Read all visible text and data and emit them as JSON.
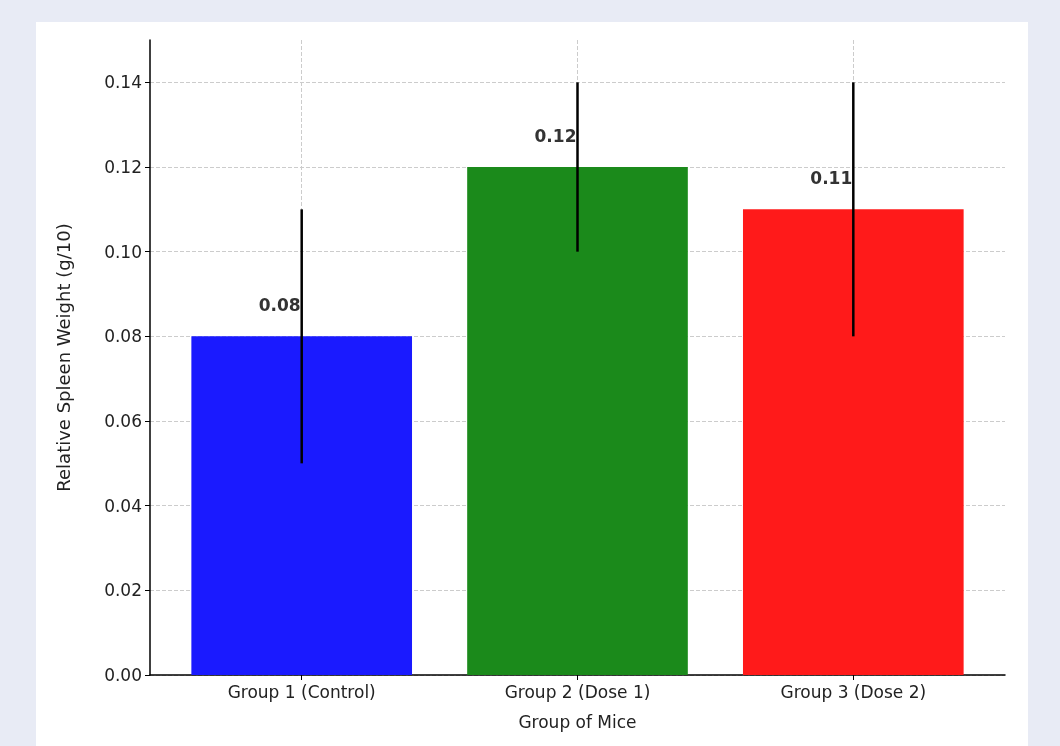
{
  "chart_data": {
    "type": "bar",
    "xlabel": "Group of Mice",
    "ylabel": "Relative Spleen Weight (g/10)",
    "categories": [
      "Group 1 (Control)",
      "Group 2 (Dose 1)",
      "Group 3 (Dose 2)"
    ],
    "values": [
      0.08,
      0.12,
      0.11
    ],
    "colors": [
      "#1a1aff",
      "#1b8a1b",
      "#ff1a1a"
    ],
    "errors": [
      0.03,
      0.02,
      0.03
    ],
    "ylim": [
      0,
      0.15
    ],
    "yticks": [
      {
        "value": 0,
        "label": "0.00"
      },
      0.02,
      0.04,
      0.06,
      0.08,
      {
        "value": 0.1,
        "label": "0.10"
      },
      0.12,
      0.14
    ],
    "grid": true,
    "data_labels": true
  }
}
